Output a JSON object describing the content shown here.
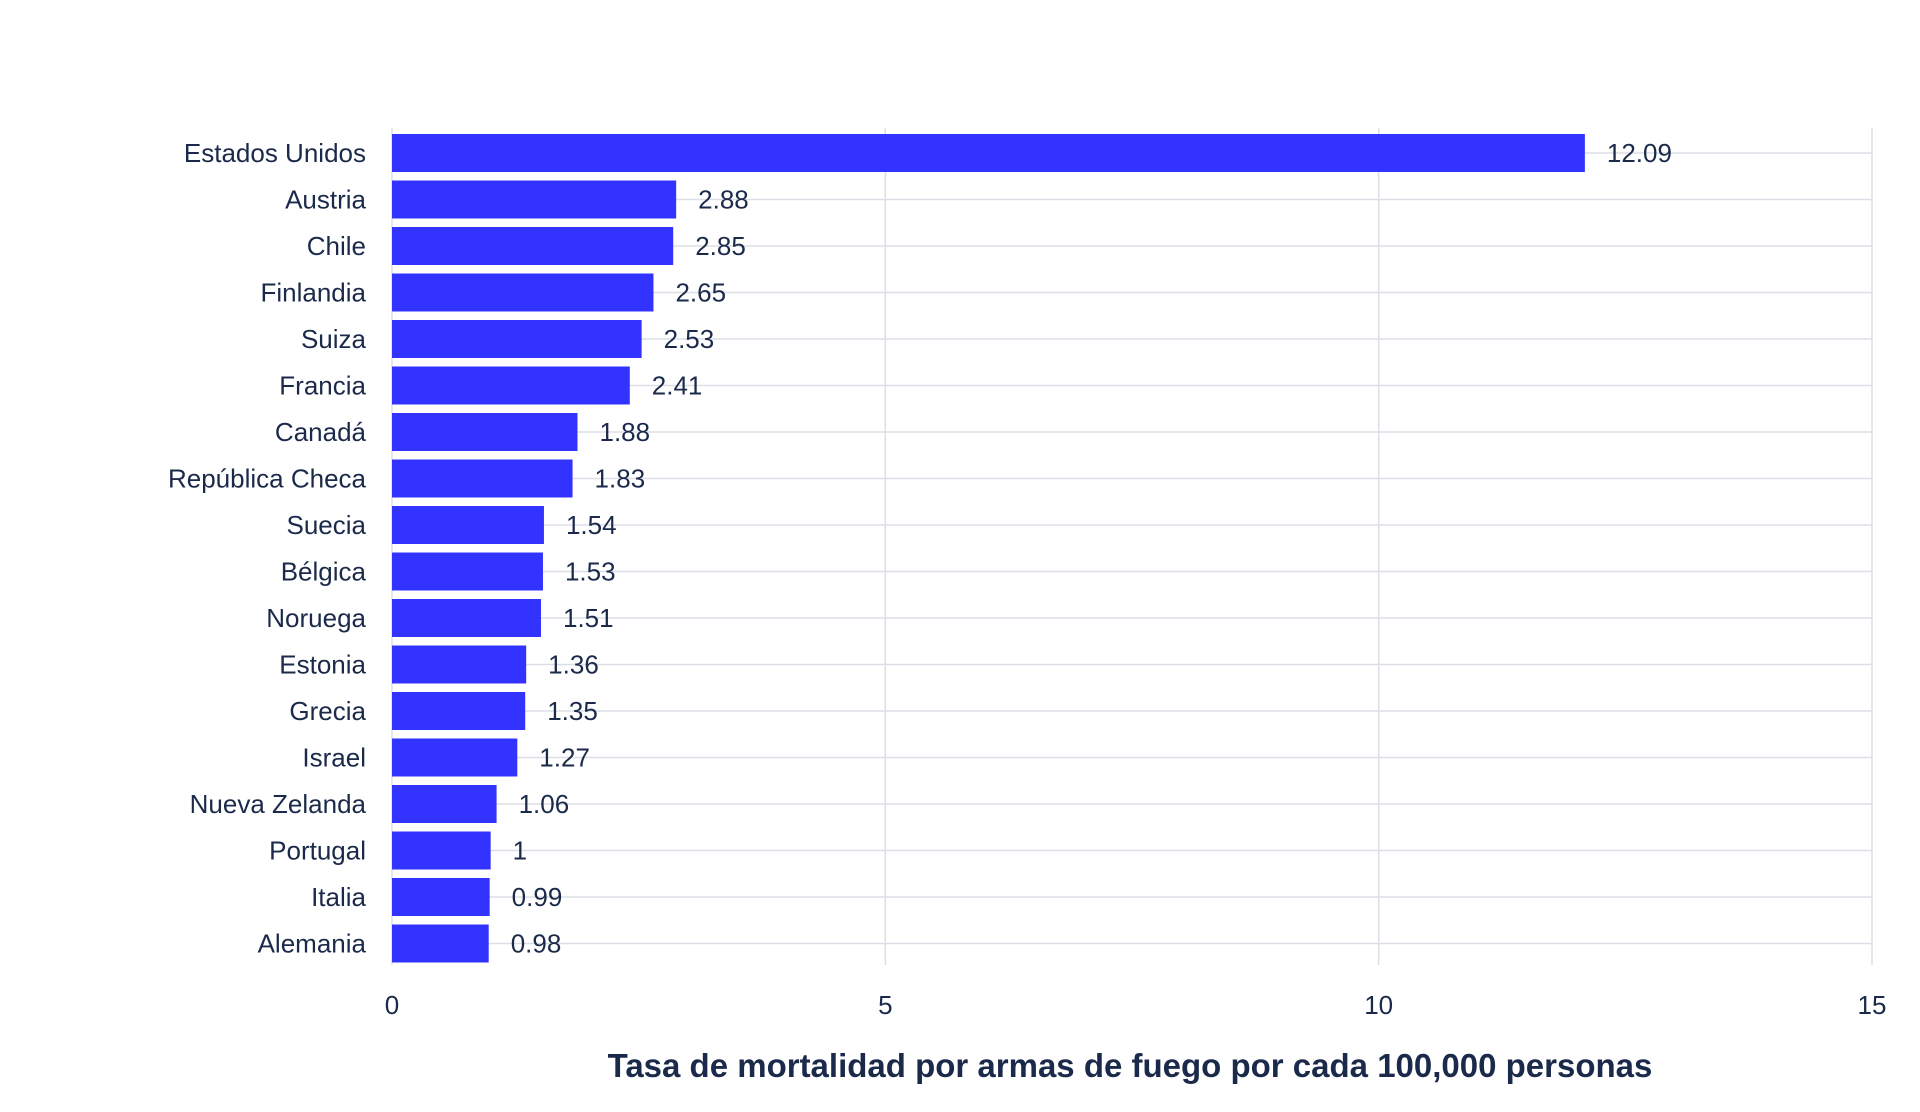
{
  "chart_data": {
    "type": "bar",
    "orientation": "horizontal",
    "categories": [
      "Estados Unidos",
      "Austria",
      "Chile",
      "Finlandia",
      "Suiza",
      "Francia",
      "Canadá",
      "República Checa",
      "Suecia",
      "Bélgica",
      "Noruega",
      "Estonia",
      "Grecia",
      "Israel",
      "Nueva Zelanda",
      "Portugal",
      "Italia",
      "Alemania"
    ],
    "values": [
      12.09,
      2.88,
      2.85,
      2.65,
      2.53,
      2.41,
      1.88,
      1.83,
      1.54,
      1.53,
      1.51,
      1.36,
      1.35,
      1.27,
      1.06,
      1,
      0.99,
      0.98
    ],
    "value_labels": [
      "12.09",
      "2.88",
      "2.85",
      "2.65",
      "2.53",
      "2.41",
      "1.88",
      "1.83",
      "1.54",
      "1.53",
      "1.51",
      "1.36",
      "1.35",
      "1.27",
      "1.06",
      "1",
      "0.99",
      "0.98"
    ],
    "xticks": [
      "0",
      "5",
      "10",
      "15"
    ],
    "xlim": [
      0,
      15
    ],
    "xlabel": "Tasa de mortalidad por armas de fuego por cada 100,000 personas",
    "ylabel": "",
    "title": "",
    "grid": true,
    "legend": "none",
    "colors": {
      "bar": "#3333ff",
      "text": "#1b2a4a",
      "grid": "#dcdfe6"
    }
  }
}
